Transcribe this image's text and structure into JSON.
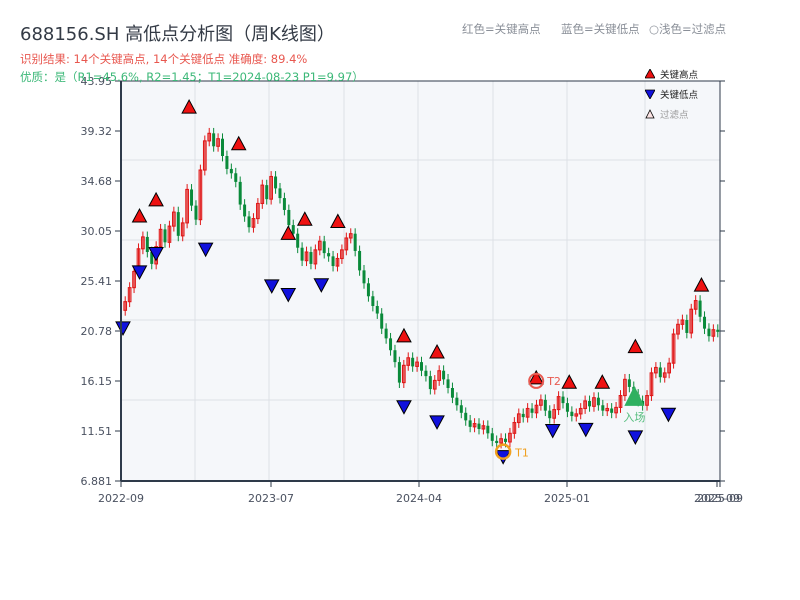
{
  "header": {
    "title": "688156.SH 高低点分析图（周K线图）",
    "result_line": "识别结果: 14个关键高点, 14个关键低点   准确度: 89.4%",
    "quality_line": "优质：是（R1=45.6%, R2=1.45；T1=2024-08-23 P1=9.97）"
  },
  "top_legend": {
    "red_label": "红色=关键高点",
    "blue_label": "蓝色=关键低点",
    "light_label": "○浅色=过滤点"
  },
  "legend": {
    "items": [
      {
        "label": "关键高点",
        "color": "#ee1111",
        "shape": "triangle-up"
      },
      {
        "label": "关键低点",
        "color": "#1111dd",
        "shape": "triangle-down"
      },
      {
        "label": "过滤点",
        "color": "#f5c6c6",
        "shape": "triangle-up-outline"
      }
    ]
  },
  "colors": {
    "up": "#e01818",
    "down": "#0a8a3a",
    "plot_bg": "#f5f7fa",
    "grid": "#dde1e6",
    "axis": "#2e3a4a",
    "t1_ring": "#f0a020",
    "t2_ring": "#e85a50",
    "breakout": "#2fb060"
  },
  "annotations": {
    "t1": "T1",
    "t2": "T2",
    "breakout": "入场"
  },
  "chart_data": {
    "type": "candlestick",
    "title": "688156.SH 高低点分析图（周K线图）",
    "xlabel": "",
    "ylabel": "",
    "ylim": [
      6.881,
      43.95
    ],
    "y_ticks": [
      "43.95",
      "39.32",
      "34.68",
      "30.05",
      "25.41",
      "20.78",
      "16.15",
      "11.51",
      "6.881"
    ],
    "x_ticks": [
      "2022-09",
      "2023-07",
      "2024-04",
      "2025-01",
      "2025-09",
      "2025-09"
    ],
    "grid": true,
    "legend_position": "top-right",
    "series": [
      {
        "name": "关键高点",
        "points": [
          {
            "date": "2022-10",
            "value": 30.6
          },
          {
            "date": "2022-11",
            "value": 32.1
          },
          {
            "date": "2023-01",
            "value": 40.7
          },
          {
            "date": "2023-04",
            "value": 37.3
          },
          {
            "date": "2023-07",
            "value": 29.0
          },
          {
            "date": "2023-08",
            "value": 30.3
          },
          {
            "date": "2023-10",
            "value": 30.1
          },
          {
            "date": "2024-02",
            "value": 19.5
          },
          {
            "date": "2024-04",
            "value": 18.0
          },
          {
            "date": "2024-10",
            "value": 15.6
          },
          {
            "date": "2024-12",
            "value": 15.2
          },
          {
            "date": "2025-02",
            "value": 15.2
          },
          {
            "date": "2025-04",
            "value": 18.5
          },
          {
            "date": "2025-08",
            "value": 24.2
          }
        ]
      },
      {
        "name": "关键低点",
        "points": [
          {
            "date": "2022-09",
            "value": 21.9
          },
          {
            "date": "2022-10",
            "value": 27.1
          },
          {
            "date": "2022-11",
            "value": 28.8
          },
          {
            "date": "2023-02",
            "value": 29.2
          },
          {
            "date": "2023-06",
            "value": 25.8
          },
          {
            "date": "2023-07",
            "value": 25.0
          },
          {
            "date": "2023-09",
            "value": 25.9
          },
          {
            "date": "2024-02",
            "value": 14.6
          },
          {
            "date": "2024-04",
            "value": 13.2
          },
          {
            "date": "2024-08",
            "value": 9.97
          },
          {
            "date": "2024-11",
            "value": 12.4
          },
          {
            "date": "2025-01",
            "value": 12.5
          },
          {
            "date": "2025-04",
            "value": 11.8
          },
          {
            "date": "2025-06",
            "value": 13.9
          }
        ]
      },
      {
        "name": "周K线",
        "values_approx": [
          23.5,
          24.8,
          26.3,
          28.4,
          29.5,
          28.1,
          27.0,
          28.6,
          30.2,
          29.0,
          30.5,
          31.8,
          29.6,
          30.8,
          33.9,
          32.4,
          31.1,
          35.7,
          38.4,
          39.1,
          37.9,
          38.6,
          37.0,
          35.8,
          35.4,
          34.6,
          32.5,
          31.4,
          30.4,
          31.2,
          32.6,
          34.3,
          33.0,
          35.1,
          34.0,
          33.1,
          32.0,
          30.6,
          29.8,
          28.5,
          27.3,
          28.1,
          27.0,
          28.3,
          29.1,
          28.0,
          27.7,
          26.8,
          27.5,
          28.3,
          29.4,
          29.8,
          28.2,
          26.4,
          25.2,
          24.0,
          23.1,
          22.4,
          21.0,
          20.1,
          19.0,
          17.9,
          16.0,
          17.6,
          18.3,
          17.5,
          17.9,
          17.1,
          16.6,
          15.4,
          16.2,
          17.1,
          16.3,
          15.5,
          14.6,
          13.9,
          13.2,
          12.5,
          11.9,
          12.2,
          11.7,
          12.0,
          11.3,
          10.6,
          10.4,
          10.8,
          10.5,
          11.3,
          12.3,
          13.1,
          12.8,
          13.6,
          13.2,
          13.9,
          14.4,
          13.4,
          12.7,
          13.5,
          14.7,
          14.1,
          13.3,
          12.9,
          13.1,
          13.6,
          14.3,
          13.8,
          14.6,
          13.9,
          13.4,
          13.6,
          13.2,
          13.7,
          14.8,
          16.3,
          15.6,
          14.9,
          14.3,
          13.9,
          14.8,
          16.9,
          17.4,
          16.5,
          16.9,
          17.8,
          20.5,
          21.4,
          21.8,
          20.6,
          22.8,
          23.6,
          22.1,
          21.0,
          20.3,
          20.9,
          20.7
        ]
      }
    ],
    "annotations": [
      {
        "label": "T1",
        "date": "2024-08-23",
        "value": 9.97
      },
      {
        "label": "T2",
        "date": "2024-10",
        "value": 15.6
      },
      {
        "label": "入场",
        "date": "2025-04",
        "value": 14.5
      }
    ]
  }
}
